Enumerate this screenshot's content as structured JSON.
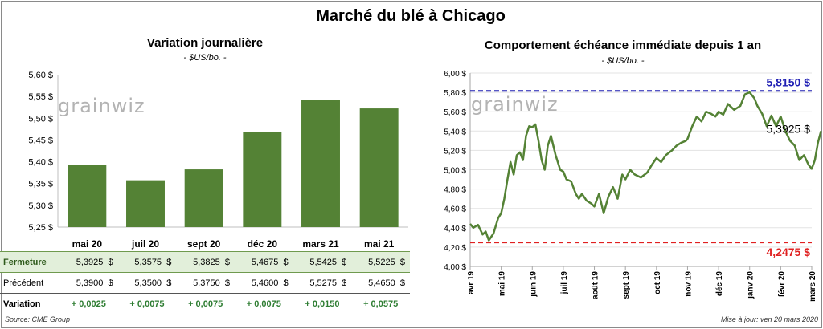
{
  "title": "Marché du blé à Chicago",
  "source": "Source: CME Group",
  "update": "Mise à jour: ven 20 mars 2020",
  "logo_left": "grain",
  "logo_right": "wiz",
  "colors": {
    "bar": "#548235",
    "line": "#548235",
    "max": "#1f1fb4",
    "min": "#e02020"
  },
  "chart_data": [
    {
      "type": "bar",
      "title": "Variation journalière",
      "subtitle": "- $US/bo. -",
      "categories": [
        "mai 20",
        "juil 20",
        "sept 20",
        "déc 20",
        "mars 21",
        "mai 21"
      ],
      "values": [
        5.3925,
        5.3575,
        5.3825,
        5.4675,
        5.5425,
        5.5225
      ],
      "ylim": [
        5.25,
        5.6
      ],
      "yticks": [
        "5,25 $",
        "5,30 $",
        "5,35 $",
        "5,40 $",
        "5,45 $",
        "5,50 $",
        "5,55 $",
        "5,60 $"
      ],
      "grid": false,
      "table": {
        "rows": [
          {
            "label": "Fermeture",
            "values": [
              "5,3925",
              "5,3575",
              "5,3825",
              "5,4675",
              "5,5425",
              "5,5225"
            ],
            "unit": "$"
          },
          {
            "label": "Précédent",
            "values": [
              "5,3900",
              "5,3500",
              "5,3750",
              "5,4600",
              "5,5275",
              "5,4650"
            ],
            "unit": "$"
          },
          {
            "label": "Variation",
            "values": [
              "+ 0,0025",
              "+ 0,0075",
              "+ 0,0075",
              "+ 0,0075",
              "+ 0,0150",
              "+ 0,0575"
            ]
          }
        ]
      }
    },
    {
      "type": "line",
      "title": "Comportement  échéance immédiate depuis 1 an",
      "subtitle": "- $US/bo. -",
      "ylim": [
        4.0,
        6.0
      ],
      "yticks": [
        "4,00 $",
        "4,20 $",
        "4,40 $",
        "4,60 $",
        "4,80 $",
        "5,00 $",
        "5,20 $",
        "5,40 $",
        "5,60 $",
        "5,80 $",
        "6,00 $"
      ],
      "xticks": [
        "avr 19",
        "mai 19",
        "juin 19",
        "juil 19",
        "août 19",
        "sept 19",
        "oct 19",
        "nov 19",
        "déc 19",
        "janv 20",
        "févr 20",
        "mars 20"
      ],
      "grid": true,
      "max_line": {
        "value": 5.815,
        "label": "5,8150 $"
      },
      "min_line": {
        "value": 4.2475,
        "label": "4,2475 $"
      },
      "last_label": "5,3925 $",
      "series": [
        {
          "x": [
            0,
            0.1,
            0.25,
            0.4,
            0.5,
            0.6,
            0.75,
            0.9,
            1.0,
            1.1,
            1.2,
            1.3,
            1.4,
            1.5,
            1.6,
            1.7,
            1.8,
            1.9,
            2.0,
            2.1,
            2.2,
            2.3,
            2.4,
            2.5,
            2.6,
            2.75,
            2.9,
            3.0,
            3.1,
            3.25,
            3.4,
            3.5,
            3.6,
            3.75,
            3.9,
            4.0,
            4.15,
            4.3,
            4.45,
            4.6,
            4.75,
            4.9,
            5.0,
            5.15,
            5.3,
            5.5,
            5.7,
            5.85,
            6.0,
            6.15,
            6.3,
            6.5,
            6.65,
            6.8,
            6.95,
            7.0,
            7.15,
            7.3,
            7.45,
            7.6,
            7.75,
            7.9,
            8.0,
            8.15,
            8.3,
            8.5,
            8.7,
            8.85,
            9.0,
            9.15,
            9.25,
            9.4,
            9.55,
            9.7,
            9.85,
            10.0,
            10.15,
            10.3,
            10.45,
            10.6,
            10.75,
            10.9,
            11.0,
            11.1,
            11.2,
            11.3
          ],
          "y": [
            4.44,
            4.4,
            4.43,
            4.33,
            4.36,
            4.27,
            4.34,
            4.5,
            4.55,
            4.7,
            4.9,
            5.08,
            4.95,
            5.15,
            5.18,
            5.1,
            5.35,
            5.45,
            5.44,
            5.47,
            5.3,
            5.1,
            5.0,
            5.25,
            5.35,
            5.15,
            5.0,
            4.98,
            4.9,
            4.88,
            4.75,
            4.7,
            4.75,
            4.68,
            4.65,
            4.62,
            4.75,
            4.55,
            4.72,
            4.82,
            4.7,
            4.95,
            4.9,
            5.0,
            4.95,
            4.92,
            4.97,
            5.05,
            5.12,
            5.08,
            5.15,
            5.2,
            5.25,
            5.28,
            5.3,
            5.32,
            5.45,
            5.55,
            5.5,
            5.6,
            5.58,
            5.55,
            5.6,
            5.57,
            5.68,
            5.62,
            5.66,
            5.78,
            5.8,
            5.74,
            5.66,
            5.58,
            5.45,
            5.56,
            5.45,
            5.55,
            5.4,
            5.3,
            5.25,
            5.1,
            5.15,
            5.05,
            5.01,
            5.1,
            5.28,
            5.4
          ]
        }
      ]
    }
  ]
}
